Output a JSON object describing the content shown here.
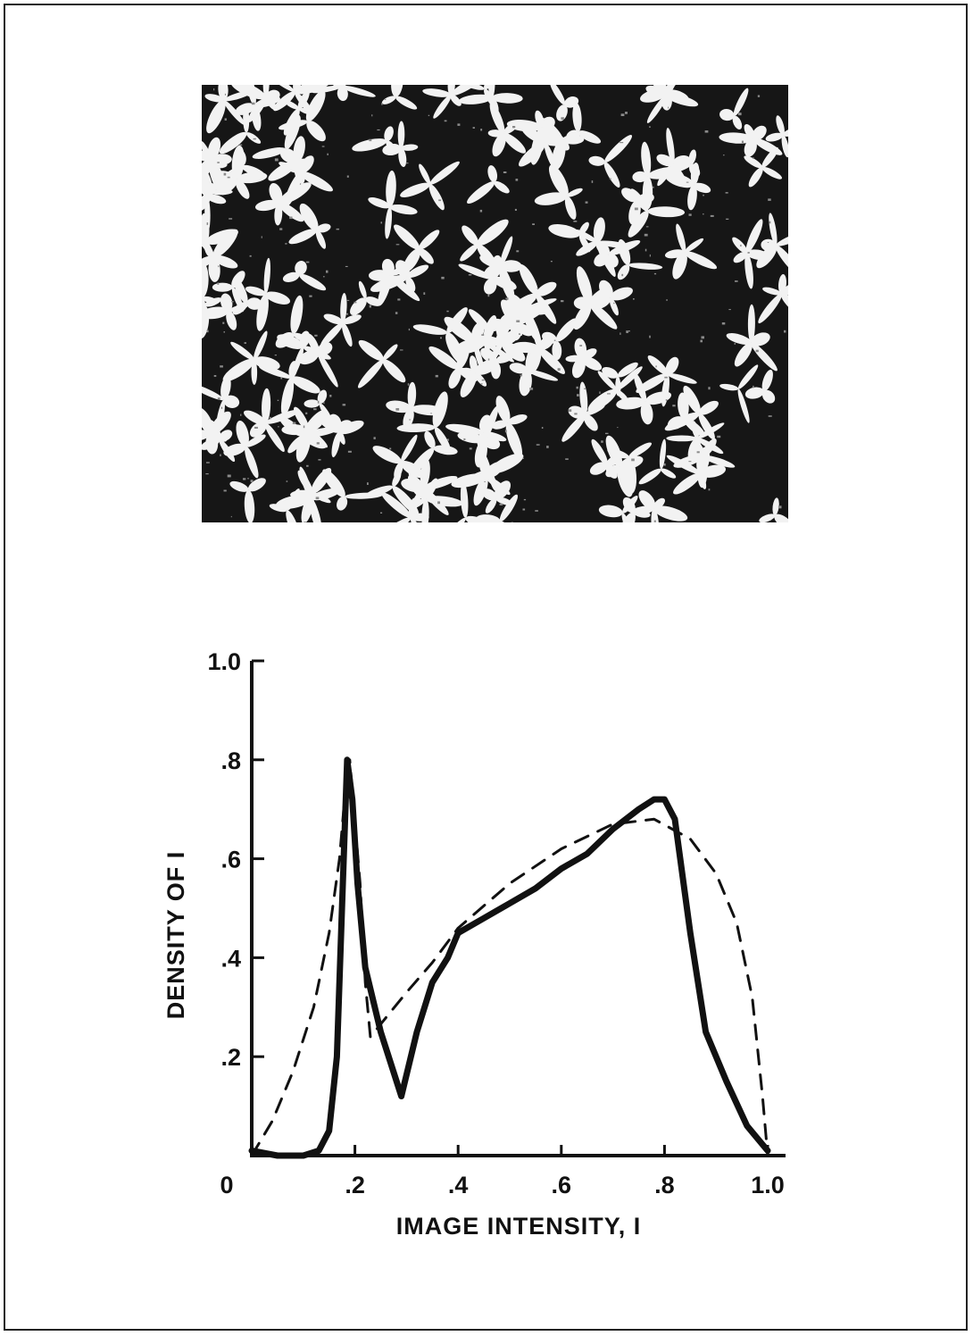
{
  "photo": {
    "subject": "foliage-photograph"
  },
  "chart_data": {
    "type": "line",
    "xlabel": "IMAGE  INTENSITY,  I",
    "ylabel": "DENSITY  OF  I",
    "xlim": [
      0,
      1.0
    ],
    "ylim": [
      0,
      1.0
    ],
    "x_ticks": [
      {
        "value": 0,
        "label": "0"
      },
      {
        "value": 0.2,
        "label": ".2"
      },
      {
        "value": 0.4,
        "label": ".4"
      },
      {
        "value": 0.6,
        "label": ".6"
      },
      {
        "value": 0.8,
        "label": ".8"
      },
      {
        "value": 1.0,
        "label": "1.0"
      }
    ],
    "y_ticks": [
      {
        "value": 0.2,
        "label": ".2"
      },
      {
        "value": 0.4,
        "label": ".4"
      },
      {
        "value": 0.6,
        "label": ".6"
      },
      {
        "value": 0.8,
        "label": ".8"
      },
      {
        "value": 1.0,
        "label": "1.0"
      }
    ],
    "grid": false,
    "series": [
      {
        "style": "solid",
        "color": "#111111",
        "x": [
          0.0,
          0.05,
          0.1,
          0.13,
          0.15,
          0.165,
          0.175,
          0.185,
          0.195,
          0.205,
          0.22,
          0.25,
          0.29,
          0.32,
          0.35,
          0.38,
          0.4,
          0.45,
          0.5,
          0.55,
          0.6,
          0.65,
          0.7,
          0.75,
          0.78,
          0.8,
          0.82,
          0.85,
          0.88,
          0.92,
          0.96,
          1.0
        ],
        "y": [
          0.01,
          0.0,
          0.0,
          0.01,
          0.05,
          0.2,
          0.5,
          0.8,
          0.72,
          0.55,
          0.38,
          0.25,
          0.12,
          0.25,
          0.35,
          0.4,
          0.45,
          0.48,
          0.51,
          0.54,
          0.58,
          0.61,
          0.66,
          0.7,
          0.72,
          0.72,
          0.68,
          0.45,
          0.25,
          0.15,
          0.06,
          0.01
        ]
      },
      {
        "style": "dashed",
        "color": "#111111",
        "x": [
          0.0,
          0.04,
          0.08,
          0.12,
          0.15,
          0.17,
          0.18,
          0.19,
          0.21,
          0.22,
          0.23,
          0.3,
          0.35,
          0.4,
          0.5,
          0.6,
          0.7,
          0.78,
          0.85,
          0.9,
          0.94,
          0.97,
          0.99,
          1.0
        ],
        "y": [
          0.0,
          0.07,
          0.17,
          0.3,
          0.45,
          0.6,
          0.72,
          0.8,
          0.55,
          0.35,
          0.24,
          0.33,
          0.39,
          0.46,
          0.55,
          0.62,
          0.67,
          0.68,
          0.64,
          0.57,
          0.47,
          0.32,
          0.12,
          0.0
        ]
      }
    ]
  }
}
